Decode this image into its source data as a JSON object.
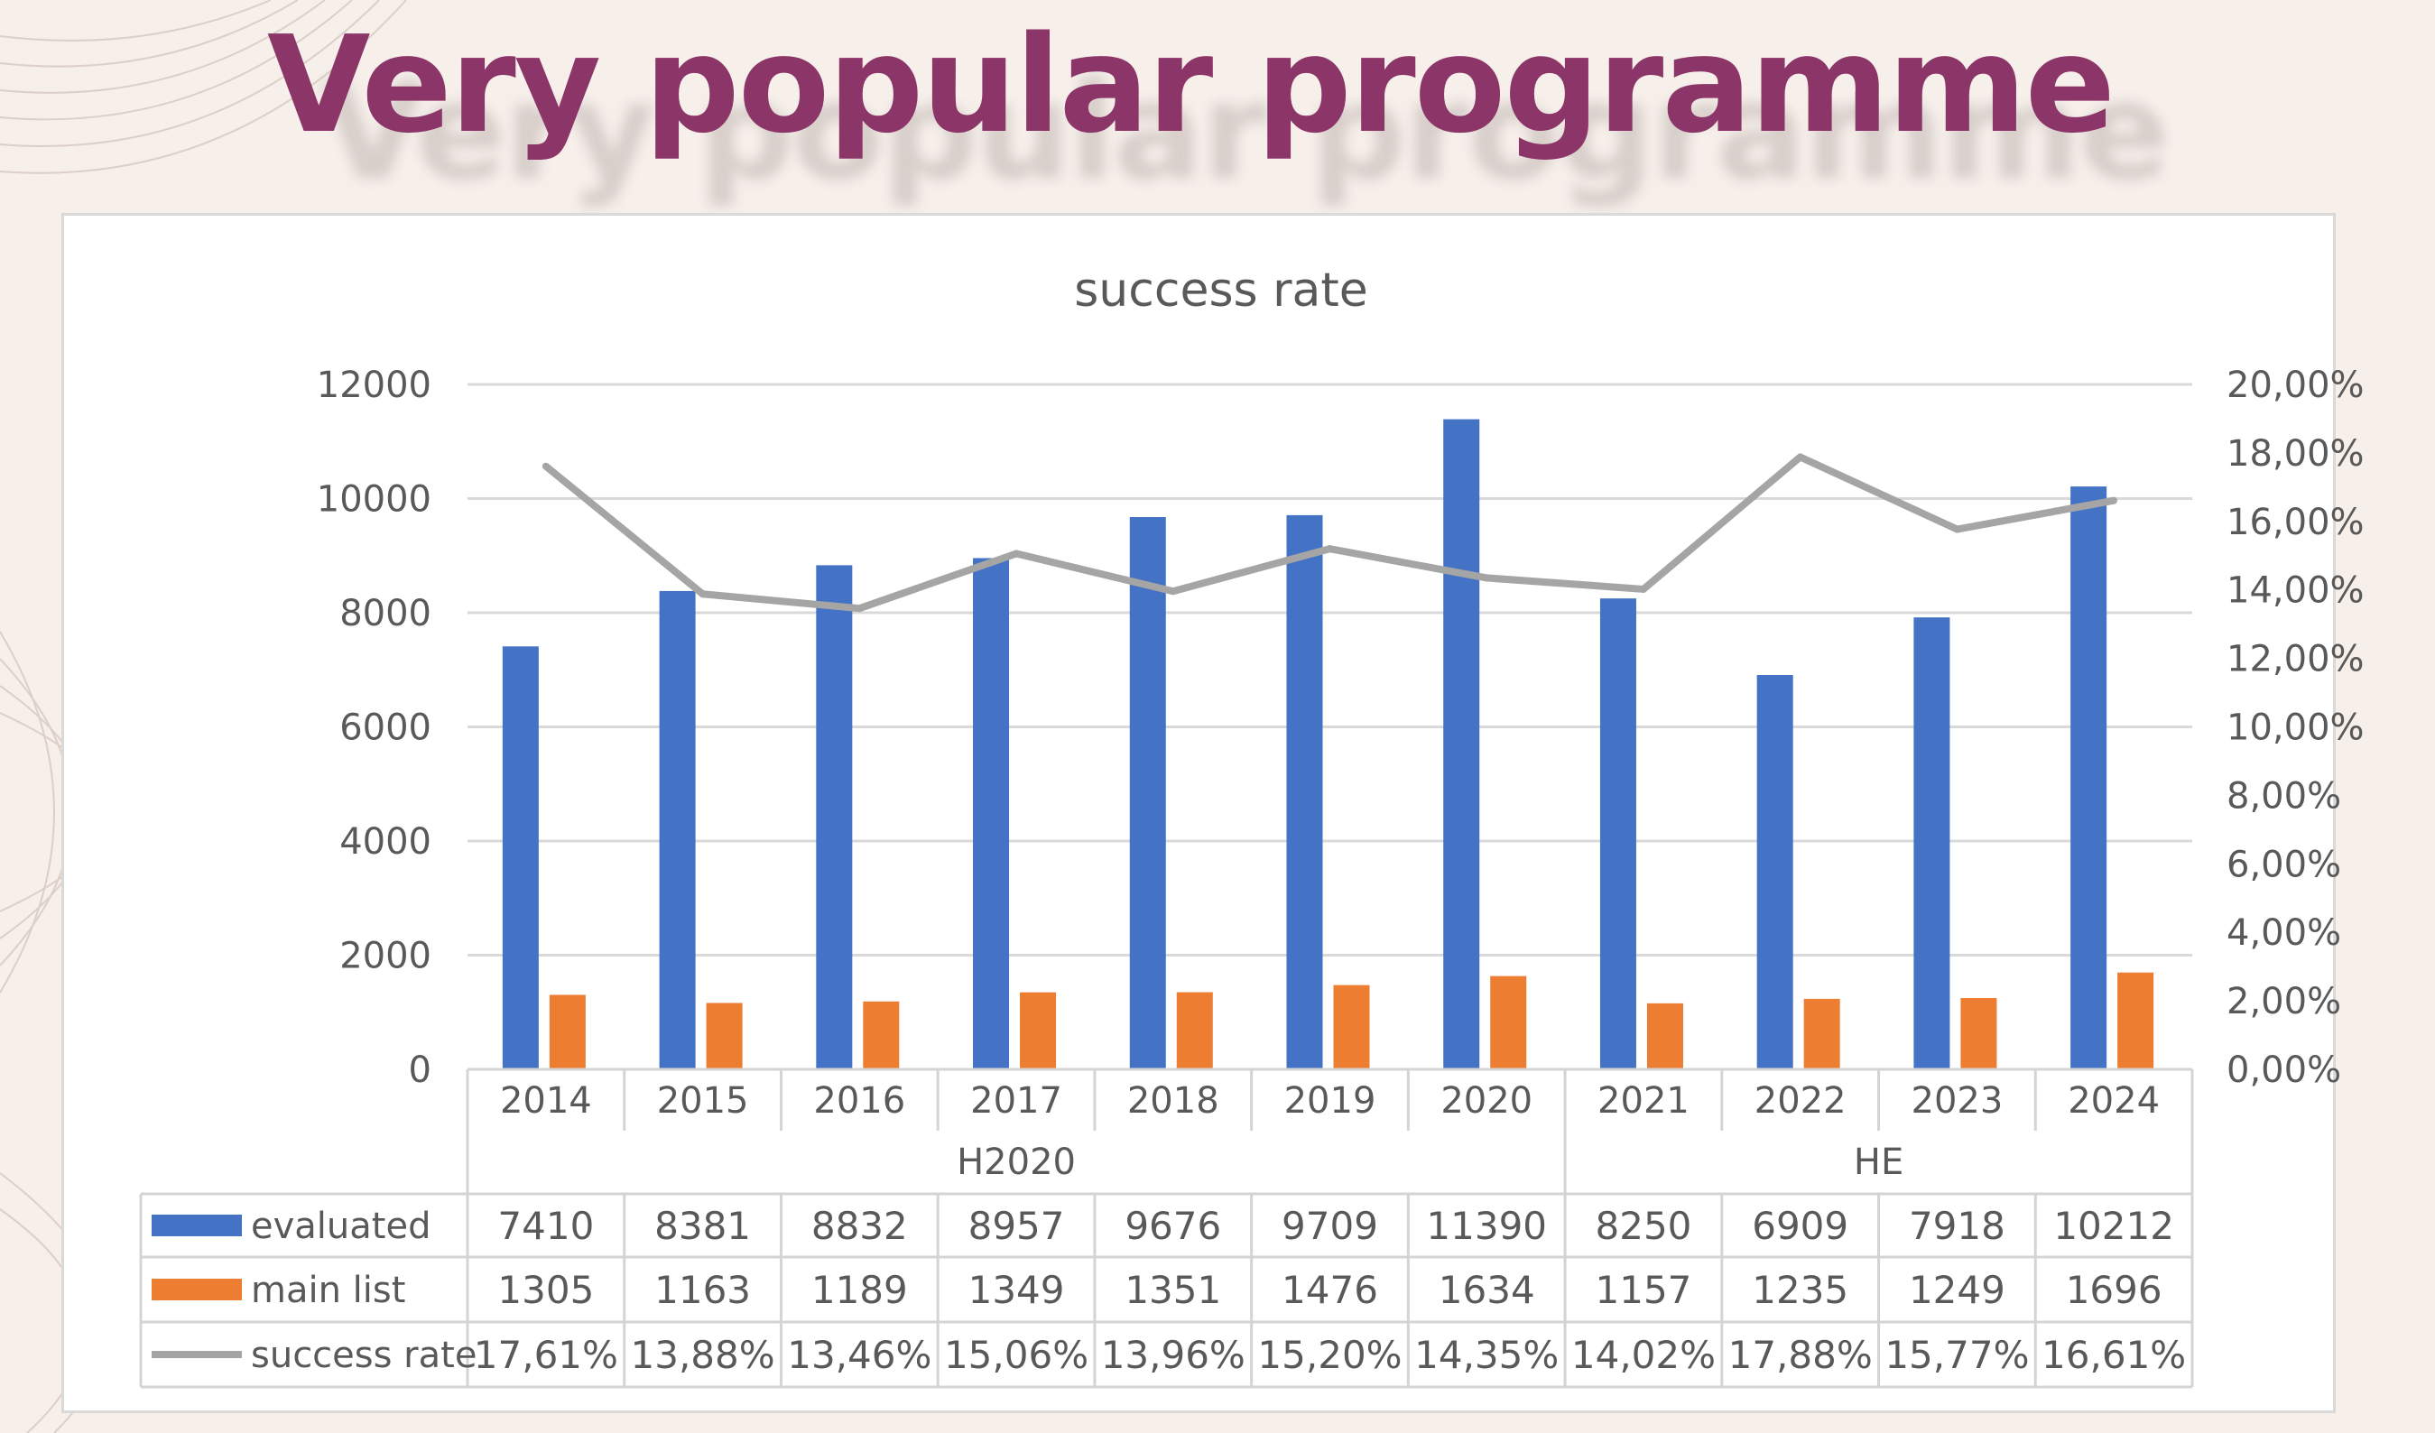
{
  "slide": {
    "title": "Very popular programme"
  },
  "colors": {
    "evaluated": "#4472c4",
    "main_list": "#ed7d31",
    "success_rate": "#a5a5a5",
    "title": "#8c3568"
  },
  "chart_data": {
    "type": "bar",
    "title": "success rate",
    "categories": [
      "2014",
      "2015",
      "2016",
      "2017",
      "2018",
      "2019",
      "2020",
      "2021",
      "2022",
      "2023",
      "2024"
    ],
    "groups": [
      {
        "label": "H2020",
        "categories": [
          "2014",
          "2015",
          "2016",
          "2017",
          "2018",
          "2019",
          "2020"
        ]
      },
      {
        "label": "HE",
        "categories": [
          "2021",
          "2022",
          "2023",
          "2024"
        ]
      }
    ],
    "series": [
      {
        "name": "evaluated",
        "type": "bar",
        "axis": "left",
        "values": [
          7410,
          8381,
          8832,
          8957,
          9676,
          9709,
          11390,
          8250,
          6909,
          7918,
          10212
        ],
        "labels": [
          "7410",
          "8381",
          "8832",
          "8957",
          "9676",
          "9709",
          "11390",
          "8250",
          "6909",
          "7918",
          "10212"
        ]
      },
      {
        "name": "main list",
        "type": "bar",
        "axis": "left",
        "values": [
          1305,
          1163,
          1189,
          1349,
          1351,
          1476,
          1634,
          1157,
          1235,
          1249,
          1696
        ],
        "labels": [
          "1305",
          "1163",
          "1189",
          "1349",
          "1351",
          "1476",
          "1634",
          "1157",
          "1235",
          "1249",
          "1696"
        ]
      },
      {
        "name": "success rate",
        "type": "line",
        "axis": "right",
        "values": [
          17.61,
          13.88,
          13.46,
          15.06,
          13.96,
          15.2,
          14.35,
          14.02,
          17.88,
          15.77,
          16.61
        ],
        "labels": [
          "17,61%",
          "13,88%",
          "13,46%",
          "15,06%",
          "13,96%",
          "15,20%",
          "14,35%",
          "14,02%",
          "17,88%",
          "15,77%",
          "16,61%"
        ]
      }
    ],
    "ylim": [
      0,
      12000
    ],
    "yticks": [
      "0",
      "2000",
      "4000",
      "6000",
      "8000",
      "10000",
      "12000"
    ],
    "y2lim": [
      0,
      20
    ],
    "y2ticks": [
      "0,00%",
      "2,00%",
      "4,00%",
      "6,00%",
      "8,00%",
      "10,00%",
      "12,00%",
      "14,00%",
      "16,00%",
      "18,00%",
      "20,00%"
    ],
    "grid": true,
    "legend": "data-table"
  }
}
